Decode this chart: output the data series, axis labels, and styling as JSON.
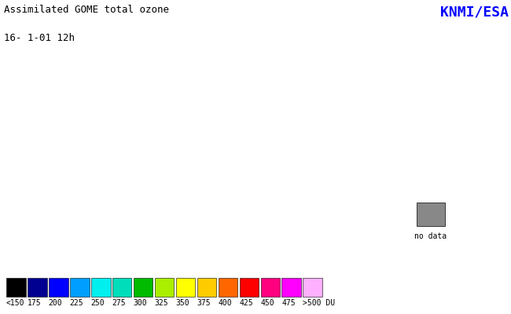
{
  "title_line1": "Assimilated GOME total ozone",
  "title_line2": "16- 1-01 12h",
  "credit": "KNMI/ESA",
  "background_color": "#ffffff",
  "colorbar_labels": [
    "<150",
    "175",
    "200",
    "225",
    "250",
    "275",
    "300",
    "325",
    "350",
    "375",
    "400",
    "425",
    "450",
    "475",
    ">500 DU"
  ],
  "colorbar_colors": [
    "#000000",
    "#000090",
    "#0000FF",
    "#009FFF",
    "#00EFEF",
    "#00DDBB",
    "#00BB00",
    "#AAEE00",
    "#FFFF00",
    "#FFCC00",
    "#FF6600",
    "#FF0000",
    "#FF007F",
    "#FF00FF",
    "#FFB0FF",
    "#FFFFFF"
  ],
  "no_data_color": "#888888",
  "grid_color": "#CC4444",
  "title_fontsize": 9,
  "credit_fontsize": 13,
  "label_fontsize": 7
}
